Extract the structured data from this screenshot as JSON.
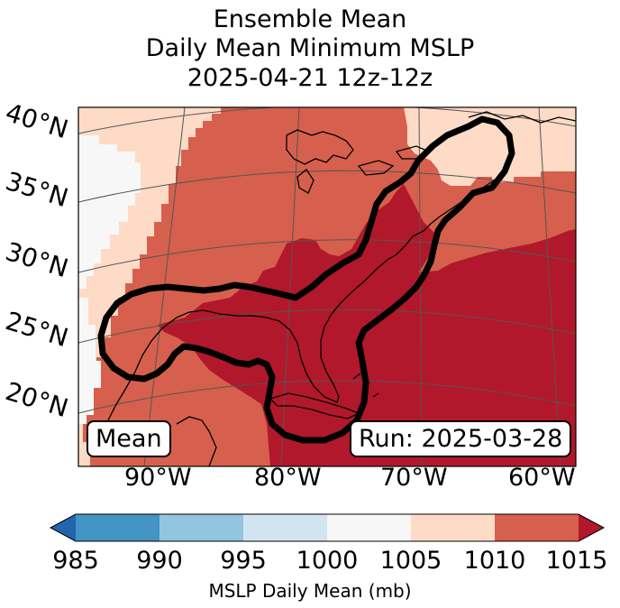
{
  "title_lines": [
    "Ensemble Mean",
    "Daily Mean Minimum MSLP",
    "2025-04-21 12z-12z"
  ],
  "map": {
    "latitude_labels": [
      "40°N",
      "35°N",
      "30°N",
      "25°N",
      "20°N"
    ],
    "longitude_labels": [
      "90°W",
      "80°W",
      "70°W",
      "60°W"
    ],
    "mean_label": "Mean",
    "run_label": "Run: 2025-03-28",
    "region": "Eastern North America / Gulf of Mexico / Western Atlantic",
    "outline": "thick black contour enclosing Gulf Coast, Florida and US East Coast"
  },
  "colorbar": {
    "label": "MSLP Daily Mean (mb)",
    "ticks": [
      "985",
      "990",
      "995",
      "1000",
      "1005",
      "1010",
      "1015"
    ],
    "bins": [
      {
        "range": "<985",
        "color": "#2166ac"
      },
      {
        "range": "985-990",
        "color": "#4393c3"
      },
      {
        "range": "990-995",
        "color": "#92c5de"
      },
      {
        "range": "995-1000",
        "color": "#d1e5f0"
      },
      {
        "range": "1000-1005",
        "color": "#f7f7f7"
      },
      {
        "range": "1005-1010",
        "color": "#fddbc7"
      },
      {
        "range": "1010-1015",
        "color": "#d6604d"
      },
      {
        "range": ">1015",
        "color": "#b2182b"
      }
    ]
  }
}
